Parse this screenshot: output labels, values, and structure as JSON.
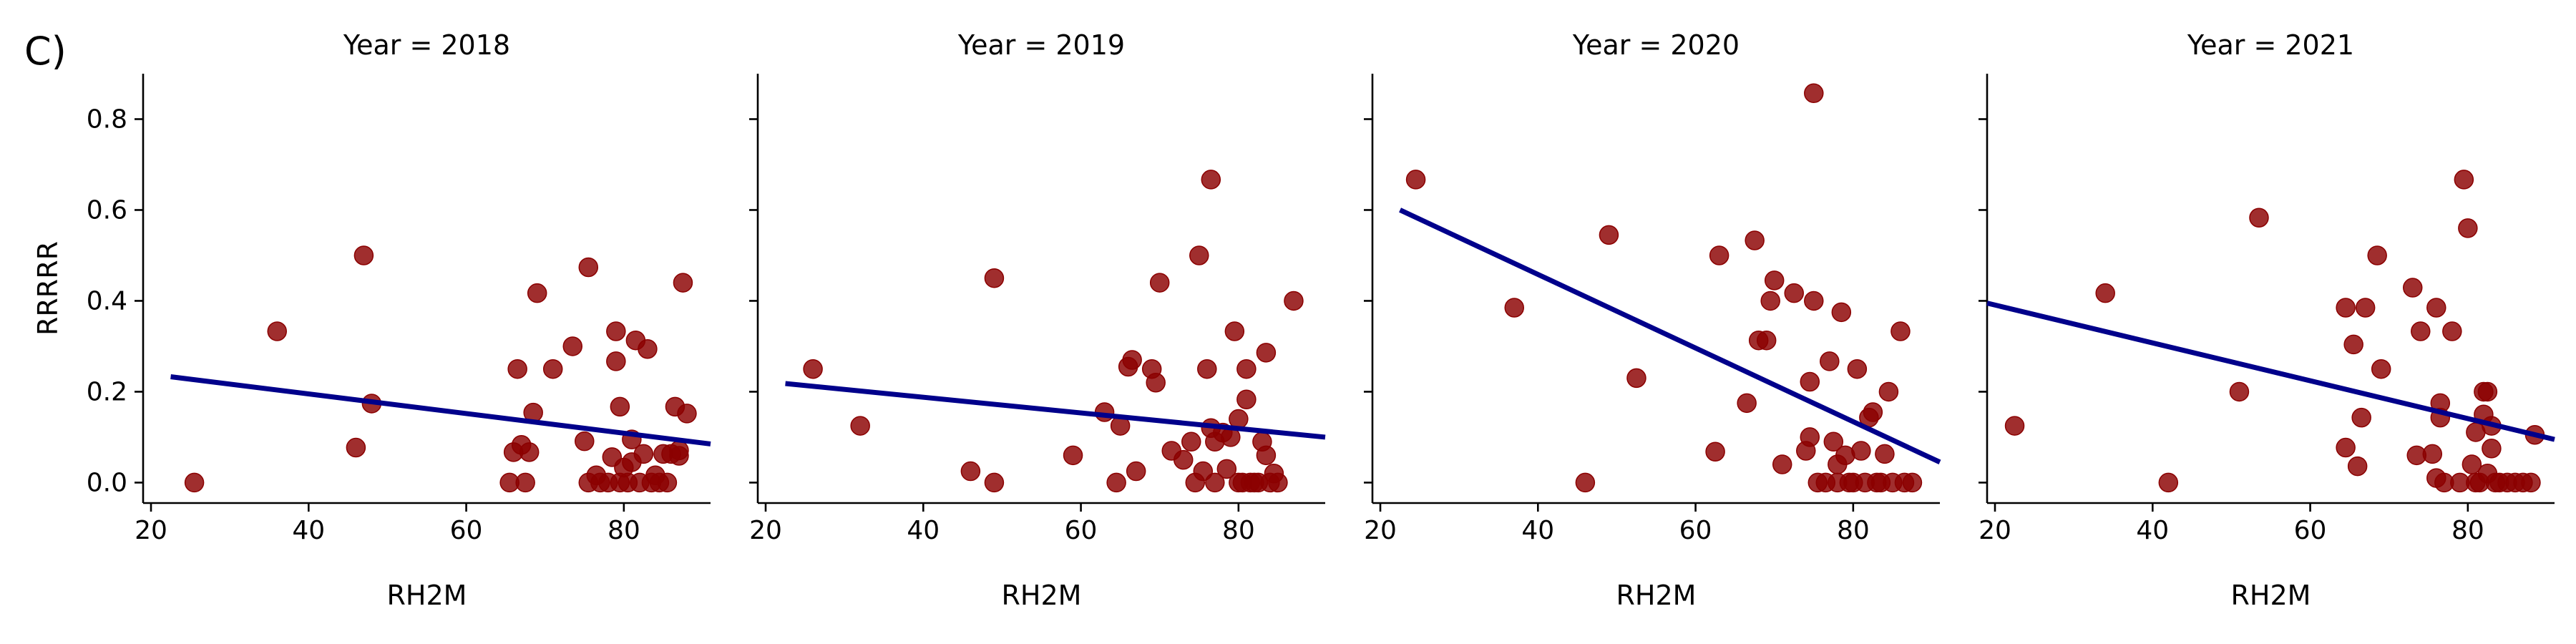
{
  "panel_letter": "C)",
  "colors": {
    "point": "#8b0000",
    "regression_line": "#00008b"
  },
  "chart_data": [
    {
      "type": "scatter",
      "title": "Year = 2018",
      "xlabel": "RH2M",
      "ylabel": "RRRRR",
      "xlim": [
        19,
        91
      ],
      "ylim": [
        -0.045,
        0.9
      ],
      "xticks": [
        20,
        40,
        60,
        80
      ],
      "yticks": [
        0.0,
        0.2,
        0.4,
        0.6,
        0.8
      ],
      "grid": false,
      "points": [
        [
          25.5,
          0.0
        ],
        [
          36,
          0.333
        ],
        [
          46,
          0.077
        ],
        [
          47,
          0.5
        ],
        [
          48,
          0.174
        ],
        [
          65.5,
          0.0
        ],
        [
          66,
          0.067
        ],
        [
          66.5,
          0.25
        ],
        [
          67,
          0.083
        ],
        [
          67.5,
          0.0
        ],
        [
          68,
          0.067
        ],
        [
          68.5,
          0.154
        ],
        [
          69,
          0.417
        ],
        [
          71,
          0.25
        ],
        [
          73.5,
          0.3
        ],
        [
          75,
          0.091
        ],
        [
          75.5,
          0.474
        ],
        [
          75.5,
          0.0
        ],
        [
          76.5,
          0.016
        ],
        [
          77,
          0.0
        ],
        [
          78,
          0.0
        ],
        [
          78.5,
          0.056
        ],
        [
          79,
          0.333
        ],
        [
          79,
          0.267
        ],
        [
          79.5,
          0.167
        ],
        [
          79.5,
          0.0
        ],
        [
          80,
          0.033
        ],
        [
          80.5,
          0.0
        ],
        [
          81,
          0.045
        ],
        [
          81,
          0.095
        ],
        [
          81.5,
          0.313
        ],
        [
          82,
          0.0
        ],
        [
          82.5,
          0.063
        ],
        [
          83,
          0.294
        ],
        [
          83.5,
          0.0
        ],
        [
          84,
          0.016
        ],
        [
          84.5,
          0.0
        ],
        [
          85,
          0.063
        ],
        [
          85.5,
          0.0
        ],
        [
          86,
          0.063
        ],
        [
          86.5,
          0.167
        ],
        [
          87,
          0.071
        ],
        [
          87,
          0.059
        ],
        [
          87.5,
          0.44
        ],
        [
          88,
          0.152
        ]
      ],
      "regression": {
        "x": [
          22.5,
          91
        ],
        "y": [
          0.233,
          0.085
        ]
      }
    },
    {
      "type": "scatter",
      "title": "Year = 2019",
      "xlabel": "RH2M",
      "ylabel": "",
      "xlim": [
        19,
        91
      ],
      "ylim": [
        -0.045,
        0.9
      ],
      "xticks": [
        20,
        40,
        60,
        80
      ],
      "yticks": [
        0.0,
        0.2,
        0.4,
        0.6,
        0.8
      ],
      "grid": false,
      "points": [
        [
          26,
          0.25
        ],
        [
          32,
          0.125
        ],
        [
          46,
          0.025
        ],
        [
          49,
          0.45
        ],
        [
          49,
          0.0
        ],
        [
          59,
          0.06
        ],
        [
          63,
          0.155
        ],
        [
          64.5,
          0.0
        ],
        [
          65,
          0.125
        ],
        [
          66,
          0.255
        ],
        [
          66.5,
          0.27
        ],
        [
          67,
          0.025
        ],
        [
          69,
          0.25
        ],
        [
          69.5,
          0.22
        ],
        [
          70,
          0.44
        ],
        [
          71.5,
          0.07
        ],
        [
          73,
          0.05
        ],
        [
          74,
          0.09
        ],
        [
          74.5,
          0.0
        ],
        [
          75,
          0.5
        ],
        [
          75.5,
          0.025
        ],
        [
          76,
          0.25
        ],
        [
          76.5,
          0.667
        ],
        [
          76.5,
          0.12
        ],
        [
          77,
          0.09
        ],
        [
          77,
          0.0
        ],
        [
          78,
          0.11
        ],
        [
          78.5,
          0.03
        ],
        [
          79,
          0.1
        ],
        [
          79.5,
          0.333
        ],
        [
          80,
          0.0
        ],
        [
          80,
          0.14
        ],
        [
          80.5,
          0.0
        ],
        [
          81,
          0.183
        ],
        [
          81,
          0.25
        ],
        [
          81.5,
          0.0
        ],
        [
          82,
          0.0
        ],
        [
          82.5,
          0.0
        ],
        [
          83,
          0.09
        ],
        [
          83.5,
          0.06
        ],
        [
          83.5,
          0.286
        ],
        [
          84,
          0.0
        ],
        [
          84.5,
          0.02
        ],
        [
          85,
          0.0
        ],
        [
          87,
          0.4
        ]
      ],
      "regression": {
        "x": [
          22.5,
          91
        ],
        "y": [
          0.218,
          0.1
        ]
      }
    },
    {
      "type": "scatter",
      "title": "Year = 2020",
      "xlabel": "RH2M",
      "ylabel": "",
      "xlim": [
        19,
        91
      ],
      "ylim": [
        -0.045,
        0.9
      ],
      "xticks": [
        20,
        40,
        60,
        80
      ],
      "yticks": [
        0.0,
        0.2,
        0.4,
        0.6,
        0.8
      ],
      "grid": false,
      "points": [
        [
          24.5,
          0.667
        ],
        [
          37,
          0.385
        ],
        [
          46,
          0.0
        ],
        [
          49,
          0.545
        ],
        [
          52.5,
          0.23
        ],
        [
          62.5,
          0.068
        ],
        [
          63,
          0.5
        ],
        [
          66.5,
          0.175
        ],
        [
          67.5,
          0.533
        ],
        [
          68,
          0.313
        ],
        [
          69,
          0.313
        ],
        [
          69.5,
          0.4
        ],
        [
          70,
          0.445
        ],
        [
          71,
          0.04
        ],
        [
          72.5,
          0.417
        ],
        [
          74,
          0.07
        ],
        [
          74.5,
          0.222
        ],
        [
          74.5,
          0.1
        ],
        [
          75,
          0.857
        ],
        [
          75,
          0.4
        ],
        [
          75.5,
          0.0
        ],
        [
          76.5,
          0.0
        ],
        [
          77,
          0.267
        ],
        [
          77.5,
          0.09
        ],
        [
          78,
          0.0
        ],
        [
          78,
          0.04
        ],
        [
          78.5,
          0.375
        ],
        [
          79,
          0.06
        ],
        [
          79.5,
          0.0
        ],
        [
          80,
          0.0
        ],
        [
          80.5,
          0.25
        ],
        [
          81,
          0.07
        ],
        [
          81.5,
          0.0
        ],
        [
          82,
          0.143
        ],
        [
          82.5,
          0.155
        ],
        [
          83,
          0.0
        ],
        [
          83.5,
          0.0
        ],
        [
          84,
          0.063
        ],
        [
          84.5,
          0.2
        ],
        [
          85,
          0.0
        ],
        [
          86,
          0.333
        ],
        [
          86.5,
          0.0
        ],
        [
          87.5,
          0.0
        ]
      ],
      "regression": {
        "x": [
          22.5,
          91
        ],
        "y": [
          0.6,
          0.045
        ]
      }
    },
    {
      "type": "scatter",
      "title": "Year = 2021",
      "xlabel": "RH2M",
      "ylabel": "",
      "xlim": [
        19,
        91
      ],
      "ylim": [
        -0.045,
        0.9
      ],
      "xticks": [
        20,
        40,
        60,
        80
      ],
      "yticks": [
        0.0,
        0.2,
        0.4,
        0.6,
        0.8
      ],
      "grid": false,
      "points": [
        [
          22.5,
          0.125
        ],
        [
          34,
          0.417
        ],
        [
          42,
          0.0
        ],
        [
          51,
          0.2
        ],
        [
          53.5,
          0.583
        ],
        [
          64.5,
          0.385
        ],
        [
          64.5,
          0.077
        ],
        [
          65.5,
          0.304
        ],
        [
          66,
          0.036
        ],
        [
          66.5,
          0.143
        ],
        [
          67,
          0.385
        ],
        [
          68.5,
          0.5
        ],
        [
          69,
          0.25
        ],
        [
          73,
          0.429
        ],
        [
          73.5,
          0.06
        ],
        [
          74,
          0.333
        ],
        [
          75.5,
          0.063
        ],
        [
          76,
          0.385
        ],
        [
          76,
          0.01
        ],
        [
          76.5,
          0.175
        ],
        [
          76.5,
          0.143
        ],
        [
          77,
          0.0
        ],
        [
          78,
          0.333
        ],
        [
          79,
          0.0
        ],
        [
          79.5,
          0.667
        ],
        [
          80,
          0.56
        ],
        [
          80.5,
          0.04
        ],
        [
          81,
          0.111
        ],
        [
          81,
          0.0
        ],
        [
          81.5,
          0.0
        ],
        [
          82,
          0.2
        ],
        [
          82.5,
          0.2
        ],
        [
          82,
          0.15
        ],
        [
          82.5,
          0.02
        ],
        [
          83,
          0.075
        ],
        [
          83,
          0.125
        ],
        [
          83.5,
          0.0
        ],
        [
          84,
          0.0
        ],
        [
          85,
          0.0
        ],
        [
          86,
          0.0
        ],
        [
          87,
          0.0
        ],
        [
          88,
          0.0
        ],
        [
          88.5,
          0.105
        ]
      ],
      "regression": {
        "x": [
          19,
          91
        ],
        "y": [
          0.395,
          0.095
        ]
      }
    }
  ]
}
